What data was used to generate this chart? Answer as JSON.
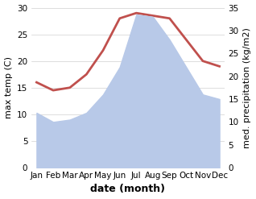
{
  "months": [
    "Jan",
    "Feb",
    "Mar",
    "Apr",
    "May",
    "Jun",
    "Jul",
    "Aug",
    "Sep",
    "Oct",
    "Nov",
    "Dec"
  ],
  "temperature": [
    16.0,
    14.5,
    15.0,
    17.5,
    22.0,
    28.0,
    29.0,
    28.5,
    28.0,
    24.0,
    20.0,
    19.0
  ],
  "precipitation": [
    12.0,
    10.0,
    10.5,
    12.0,
    16.0,
    22.0,
    33.5,
    33.0,
    28.0,
    22.0,
    16.0,
    15.0
  ],
  "temp_color": "#c0504d",
  "precip_color": "#b8c9e8",
  "temp_ylim": [
    0,
    30
  ],
  "precip_ylim": [
    0,
    35
  ],
  "temp_ylabel": "max temp (C)",
  "precip_ylabel": "med. precipitation (kg/m2)",
  "xlabel": "date (month)",
  "bg_color": "#ffffff",
  "grid_color": "#d0d0d0",
  "temp_linewidth": 2.0,
  "ylabel_fontsize": 8,
  "xlabel_fontsize": 9,
  "tick_fontsize": 7.5
}
